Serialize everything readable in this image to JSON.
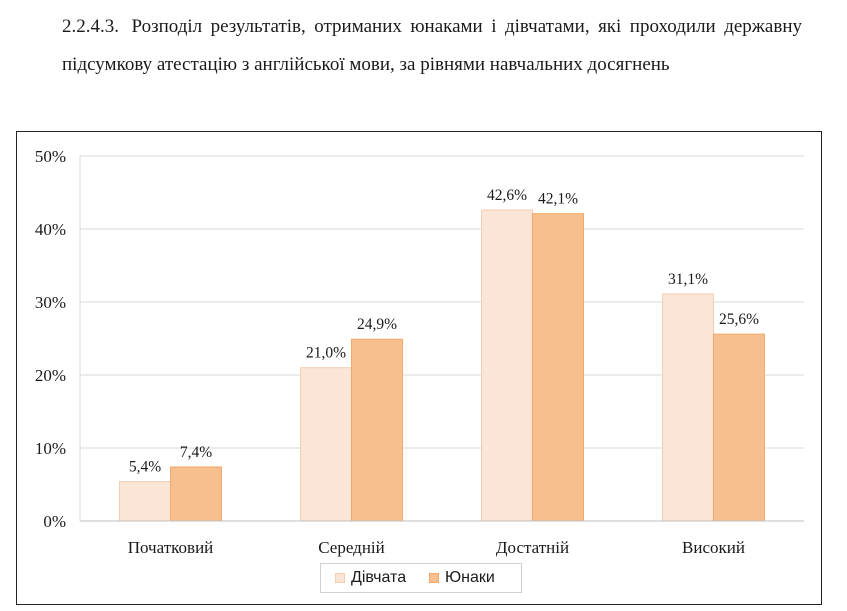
{
  "heading": {
    "number": "2.2.4.3.",
    "text": "Розподіл результатів, отриманих юнаками і дівчатами, які проходили державну підсумкову атестацію з англійської мови, за рівнями навчальних досягнень"
  },
  "colors": {
    "girls_fill": "#FBE5D6",
    "girls_stroke": "#F4CDB2",
    "boys_fill": "#F8BF8E",
    "boys_stroke": "#F2A96B",
    "grid": "#D9D9D9"
  },
  "chart_data": {
    "type": "bar",
    "categories": [
      "Початковий",
      "Середній",
      "Достатній",
      "Високий"
    ],
    "series": [
      {
        "name": "Дівчата",
        "values": [
          5.4,
          21.0,
          42.6,
          31.1
        ],
        "labels": [
          "5,4%",
          "21,0%",
          "42,6%",
          "31,1%"
        ]
      },
      {
        "name": "Юнаки",
        "values": [
          7.4,
          24.9,
          42.1,
          25.6
        ],
        "labels": [
          "7,4%",
          "24,9%",
          "42,1%",
          "25,6%"
        ]
      }
    ],
    "yticks": [
      "0%",
      "10%",
      "20%",
      "30%",
      "40%",
      "50%"
    ],
    "ylim": [
      0,
      50
    ],
    "grid": true,
    "legend": "bottom"
  }
}
